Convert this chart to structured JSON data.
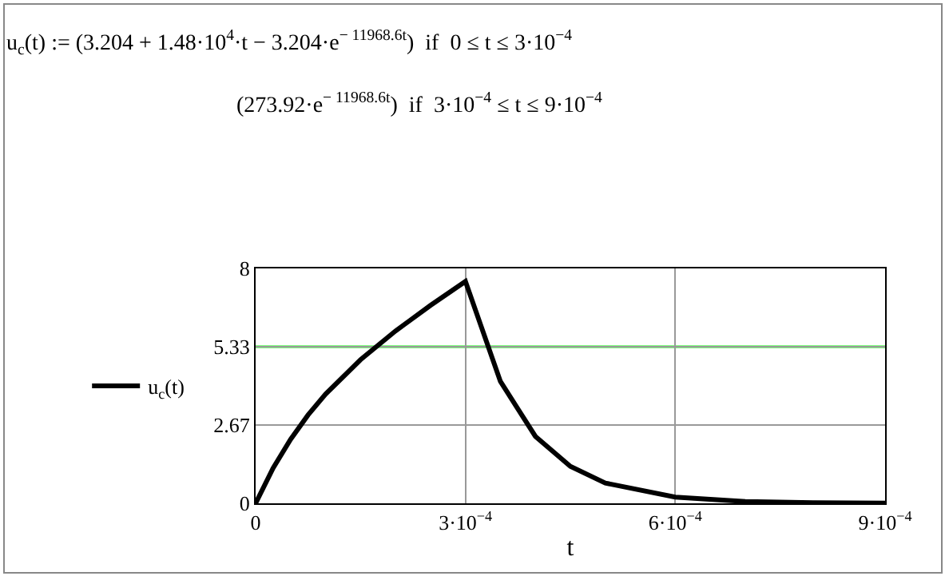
{
  "chart_data": {
    "type": "line",
    "annotations": [
      "u$_{c}$(t) := (3.204 + 1.48·10$^{4}$·t − 3.204·e$^{− 11968.6t}$)  if  0 ≤ t ≤ 3·10$^{−4}$",
      "(273.92·e$^{− 11968.6t}$)  if  3·10$^{−4}$ ≤ t ≤ 9·10$^{−4}$"
    ],
    "xlabel": "t",
    "x": [
      0,
      2.5e-05,
      5e-05,
      7.5e-05,
      0.0001,
      0.00015,
      0.0002,
      0.00025,
      0.0003,
      0.00035,
      0.0004,
      0.00045,
      0.0005,
      0.0006,
      0.0007,
      0.0008,
      0.0009
    ],
    "series": [
      {
        "name": "u$_{c}$(t)",
        "color": "#000000",
        "values": [
          0,
          1.2,
          2.18,
          3.01,
          3.72,
          4.89,
          5.87,
          6.74,
          7.56,
          4.15,
          2.28,
          1.26,
          0.69,
          0.21,
          0.06,
          0.02,
          0.01
        ]
      }
    ],
    "xlim": [
      0,
      0.0009
    ],
    "xticks": [
      0,
      {
        "value": 0.0003,
        "label": "3·10$^{−4}$"
      },
      {
        "value": 0.0006,
        "label": "6·10$^{−4}$"
      },
      {
        "value": 0.0009,
        "label": "9·10$^{−4}$"
      }
    ],
    "ylim": [
      0,
      8
    ],
    "yticks": [
      0,
      2.67,
      5.33,
      8
    ],
    "ref_lines": [
      {
        "axis": "y",
        "value": 5.33,
        "color": "#00ff00"
      }
    ],
    "grid": true,
    "legend": "left",
    "marker": "none",
    "line_style": "solid"
  }
}
